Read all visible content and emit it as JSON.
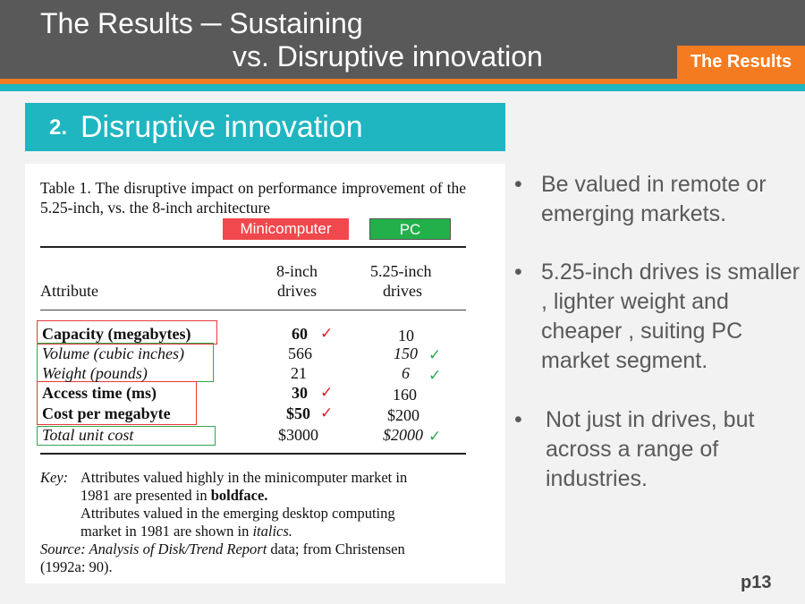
{
  "header": {
    "title_line1": "The Results ─   Sustaining",
    "title_line2": "vs. Disruptive innovation",
    "tag": "The Results"
  },
  "section": {
    "number": "2.",
    "title": "Disruptive innovation"
  },
  "table": {
    "caption": "Table 1.  The  disruptive  impact  on  performance improvement of the 5.25-inch, vs. the 8-inch architecture",
    "labels": {
      "minicomputer": "Minicomputer",
      "pc": "PC"
    },
    "col_attribute": "Attribute",
    "col_8inch_l1": "8-inch",
    "col_8inch_l2": "drives",
    "col_525_l1": "5.25-inch",
    "col_525_l2": "drives",
    "rows": [
      {
        "attr": "Capacity (megabytes)",
        "v8": "60",
        "v5": "10"
      },
      {
        "attr": "Volume (cubic inches)",
        "v8": "566",
        "v5": "150"
      },
      {
        "attr": "Weight (pounds)",
        "v8": "21",
        "v5": "6"
      },
      {
        "attr": "Access time (ms)",
        "v8": "30",
        "v5": "160"
      },
      {
        "attr": "Cost per megabyte",
        "v8": "$50",
        "v5": "$200"
      },
      {
        "attr": "Total unit cost",
        "v8": "$3000",
        "v5": "$2000"
      }
    ],
    "key_label": "Key:",
    "key_l1": "Attributes valued highly in the minicomputer market in",
    "key_l2a": "1981 are presented in ",
    "key_l2b": "boldface.",
    "key_l3": "Attributes valued in the emerging desktop computing",
    "key_l4a": "market in 1981 are shown in ",
    "key_l4b": "italics.",
    "source_label": "Source: Analysis of Disk/Trend Report",
    "source_rest": " data; from Christensen",
    "source_l2": "(1992a: 90).",
    "checkmark": "✓",
    "colors": {
      "minicomputer": "#e8383d",
      "pc": "#2fa84f"
    }
  },
  "bullets": [
    "Be valued in remote or emerging markets.",
    "5.25-inch drives is smaller , lighter weight and cheaper , suiting PC market segment.",
    "Not just in drives, but across a range of industries."
  ],
  "bullet_char": "•",
  "page_number": "p13"
}
